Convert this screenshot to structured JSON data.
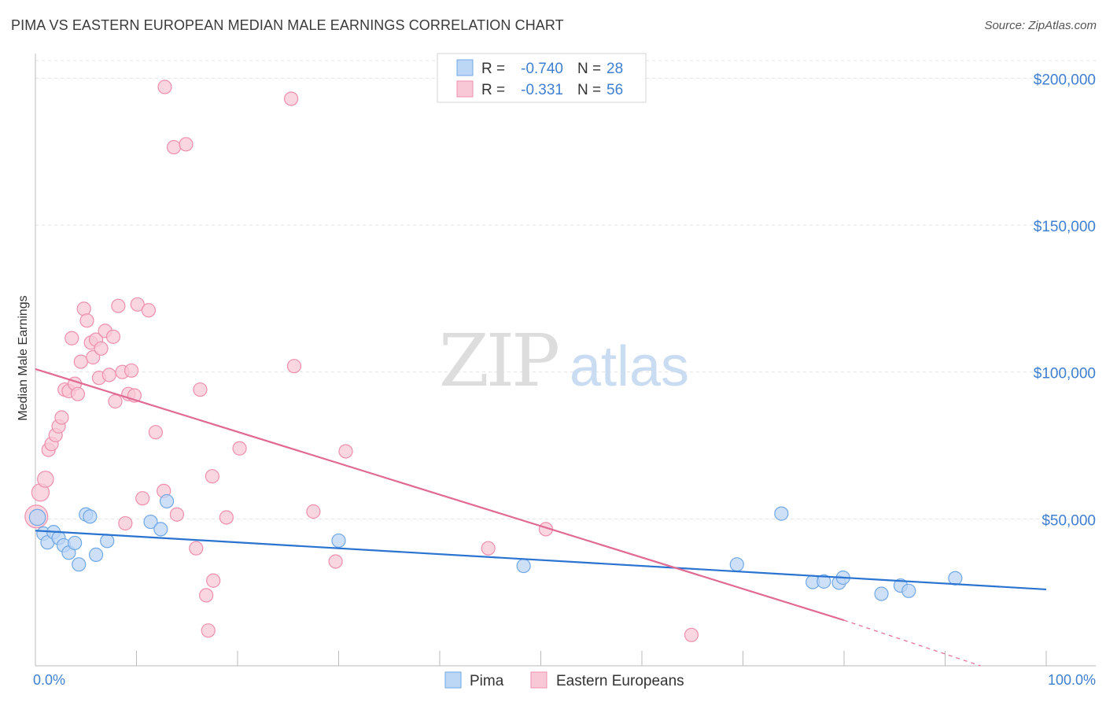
{
  "header": {
    "title": "PIMA VS EASTERN EUROPEAN MEDIAN MALE EARNINGS CORRELATION CHART",
    "source": "Source: ZipAtlas.com"
  },
  "colors": {
    "pima": "#6fa8e6",
    "pima_fill": "#bcd6f5",
    "pima_line": "#2a73d0",
    "eastern": "#ee8fac",
    "eastern_fill": "#f8c8d6",
    "eastern_line": "#e06a93",
    "tick_text": "#3f7fd0"
  },
  "chart_data": {
    "type": "scatter",
    "title": "PIMA VS EASTERN EUROPEAN MEDIAN MALE EARNINGS CORRELATION CHART",
    "xlabel": "",
    "ylabel": "Median Male Earnings",
    "xlim": [
      0,
      100
    ],
    "ylim": [
      0,
      210000
    ],
    "x_tick_labels": [
      "0.0%",
      "100.0%"
    ],
    "y_ticks": [
      {
        "value": 50000,
        "label": "$50,000"
      },
      {
        "value": 100000,
        "label": "$100,000"
      },
      {
        "value": 150000,
        "label": "$150,000"
      },
      {
        "value": 200000,
        "label": "$200,000"
      }
    ],
    "watermark": {
      "zip": "ZIP",
      "atlas": "atlas"
    },
    "legend": [
      {
        "series": "Pima",
        "r_label": "R =",
        "r_value": "-0.740",
        "n_label": "N =",
        "n_value": "28"
      },
      {
        "series": "Eastern Europeans",
        "r_label": "R =",
        "r_value": "-0.331",
        "n_label": "N =",
        "n_value": "56"
      }
    ],
    "series": [
      {
        "name": "Pima",
        "points": [
          {
            "x": 0.2,
            "y": 50500,
            "s": 1.2
          },
          {
            "x": 0.8,
            "y": 45000
          },
          {
            "x": 1.2,
            "y": 42000
          },
          {
            "x": 1.8,
            "y": 45500
          },
          {
            "x": 2.3,
            "y": 43500
          },
          {
            "x": 2.8,
            "y": 41000
          },
          {
            "x": 3.3,
            "y": 38500
          },
          {
            "x": 3.9,
            "y": 41800
          },
          {
            "x": 4.3,
            "y": 34500
          },
          {
            "x": 5.0,
            "y": 51500
          },
          {
            "x": 5.4,
            "y": 50800
          },
          {
            "x": 6.0,
            "y": 37800
          },
          {
            "x": 7.1,
            "y": 42500
          },
          {
            "x": 11.4,
            "y": 49000
          },
          {
            "x": 12.4,
            "y": 46500
          },
          {
            "x": 13.0,
            "y": 56000
          },
          {
            "x": 30.0,
            "y": 42600
          },
          {
            "x": 48.3,
            "y": 34000
          },
          {
            "x": 69.4,
            "y": 34500
          },
          {
            "x": 73.8,
            "y": 51800
          },
          {
            "x": 76.9,
            "y": 28500
          },
          {
            "x": 78.0,
            "y": 28700
          },
          {
            "x": 79.5,
            "y": 28300
          },
          {
            "x": 79.9,
            "y": 30000
          },
          {
            "x": 83.7,
            "y": 24500
          },
          {
            "x": 85.6,
            "y": 27300
          },
          {
            "x": 86.4,
            "y": 25500
          },
          {
            "x": 91.0,
            "y": 29800
          }
        ],
        "trend": {
          "x": [
            0,
            100
          ],
          "y": [
            46000,
            26000
          ]
        }
      },
      {
        "name": "Eastern Europeans",
        "points": [
          {
            "x": 0.1,
            "y": 50800,
            "s": 1.7
          },
          {
            "x": 0.5,
            "y": 59000,
            "s": 1.3
          },
          {
            "x": 1.0,
            "y": 63500,
            "s": 1.2
          },
          {
            "x": 1.3,
            "y": 73500
          },
          {
            "x": 1.6,
            "y": 75500
          },
          {
            "x": 2.0,
            "y": 78500
          },
          {
            "x": 2.3,
            "y": 81500
          },
          {
            "x": 2.6,
            "y": 84500
          },
          {
            "x": 2.9,
            "y": 94000
          },
          {
            "x": 3.3,
            "y": 93500
          },
          {
            "x": 3.6,
            "y": 111500
          },
          {
            "x": 3.9,
            "y": 96000
          },
          {
            "x": 4.2,
            "y": 92500
          },
          {
            "x": 4.5,
            "y": 103500
          },
          {
            "x": 4.8,
            "y": 121500
          },
          {
            "x": 5.1,
            "y": 117500
          },
          {
            "x": 5.5,
            "y": 110000
          },
          {
            "x": 5.7,
            "y": 105000
          },
          {
            "x": 6.0,
            "y": 111000
          },
          {
            "x": 6.3,
            "y": 98000
          },
          {
            "x": 6.5,
            "y": 108000
          },
          {
            "x": 6.9,
            "y": 114000
          },
          {
            "x": 7.3,
            "y": 99000
          },
          {
            "x": 7.7,
            "y": 112000
          },
          {
            "x": 7.9,
            "y": 90000
          },
          {
            "x": 8.2,
            "y": 122500
          },
          {
            "x": 8.6,
            "y": 100000
          },
          {
            "x": 8.9,
            "y": 48500
          },
          {
            "x": 9.2,
            "y": 92500
          },
          {
            "x": 9.5,
            "y": 100500
          },
          {
            "x": 9.8,
            "y": 92000
          },
          {
            "x": 10.1,
            "y": 123000
          },
          {
            "x": 10.6,
            "y": 57000
          },
          {
            "x": 11.2,
            "y": 121000
          },
          {
            "x": 11.9,
            "y": 79500
          },
          {
            "x": 12.7,
            "y": 59500
          },
          {
            "x": 14.0,
            "y": 51500
          },
          {
            "x": 12.8,
            "y": 197000
          },
          {
            "x": 13.7,
            "y": 176500
          },
          {
            "x": 14.9,
            "y": 177500
          },
          {
            "x": 15.9,
            "y": 40000
          },
          {
            "x": 16.3,
            "y": 94000
          },
          {
            "x": 16.9,
            "y": 24000
          },
          {
            "x": 17.1,
            "y": 12000
          },
          {
            "x": 17.6,
            "y": 29000
          },
          {
            "x": 17.5,
            "y": 64500
          },
          {
            "x": 18.9,
            "y": 50500
          },
          {
            "x": 20.2,
            "y": 74000
          },
          {
            "x": 25.3,
            "y": 193000
          },
          {
            "x": 25.6,
            "y": 102000
          },
          {
            "x": 27.5,
            "y": 52500
          },
          {
            "x": 29.7,
            "y": 35500
          },
          {
            "x": 30.7,
            "y": 73000
          },
          {
            "x": 44.8,
            "y": 40000
          },
          {
            "x": 50.5,
            "y": 46500
          },
          {
            "x": 64.9,
            "y": 10500
          }
        ],
        "trend": {
          "x": [
            0,
            80
          ],
          "y": [
            101000,
            15500
          ]
        },
        "trend_dashed": {
          "x": [
            80,
            93.5
          ],
          "y": [
            15500,
            0
          ]
        }
      }
    ]
  }
}
